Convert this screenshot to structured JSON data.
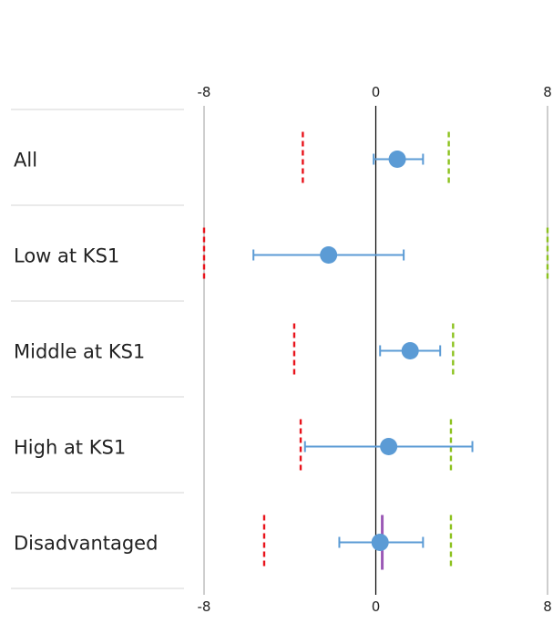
{
  "chart_data": {
    "type": "forest",
    "x_axis": {
      "range": [
        -8,
        8
      ],
      "ticks": [
        -8,
        0,
        8
      ],
      "tick_labels": [
        "-8",
        "0",
        "8"
      ],
      "zero_line": true
    },
    "rows": [
      {
        "label": "All",
        "estimate": 1.0,
        "ci": [
          -0.1,
          2.2
        ],
        "lower_threshold": -3.4,
        "upper_threshold": 3.4,
        "marker": null
      },
      {
        "label": "Low at KS1",
        "estimate": -2.2,
        "ci": [
          -5.7,
          1.3
        ],
        "lower_threshold": -8.0,
        "upper_threshold": 8.0,
        "marker": null
      },
      {
        "label": "Middle at KS1",
        "estimate": 1.6,
        "ci": [
          0.2,
          3.0
        ],
        "lower_threshold": -3.8,
        "upper_threshold": 3.6,
        "marker": null
      },
      {
        "label": "High at KS1",
        "estimate": 0.6,
        "ci": [
          -3.3,
          4.5
        ],
        "lower_threshold": -3.5,
        "upper_threshold": 3.5,
        "marker": null
      },
      {
        "label": "Disadvantaged",
        "estimate": 0.2,
        "ci": [
          -1.7,
          2.2
        ],
        "lower_threshold": -5.2,
        "upper_threshold": 3.5,
        "marker": 0.3
      }
    ],
    "colors": {
      "point": "#5b9bd5",
      "ci": "#5b9bd5",
      "lower_threshold": "#e8131b",
      "upper_threshold": "#8cc21f",
      "marker": "#9b59b6",
      "zero_line": "#000000",
      "side_lines": "#9e9e9e",
      "separator": "#e3e3e3"
    }
  }
}
